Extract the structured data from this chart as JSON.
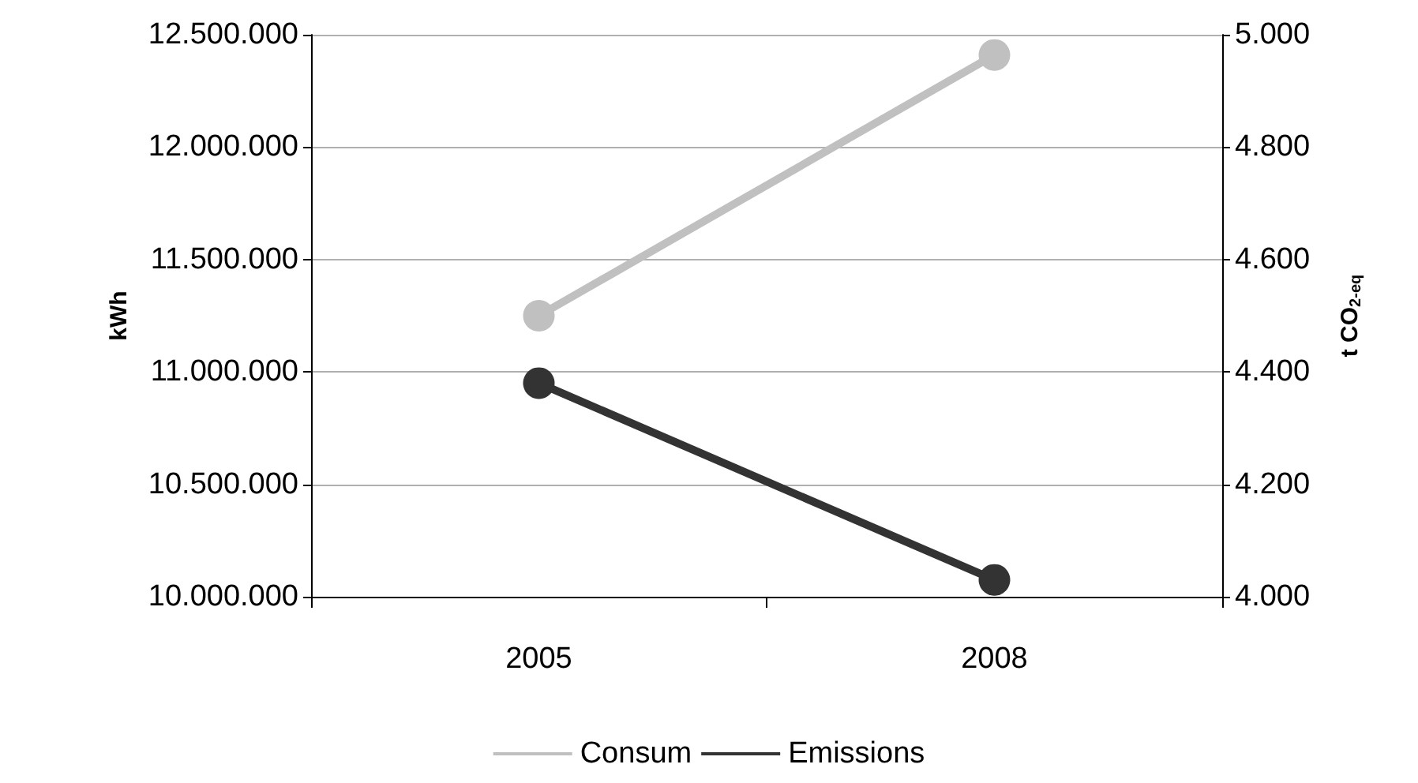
{
  "chart_data": {
    "type": "line",
    "categories": [
      "2005",
      "2008"
    ],
    "series": [
      {
        "name": "Consum",
        "color": "#c0c0c0",
        "values": [
          11250000,
          12410000
        ]
      },
      {
        "name": "Emissions",
        "color": "#333333",
        "values": [
          4380,
          4030
        ],
        "axis": "y2"
      }
    ],
    "ylabel": "kWh",
    "y2label": "t CO$_{2-eq}$",
    "ylim": [
      10000000,
      12500000
    ],
    "yticks": [
      {
        "value": 10000000,
        "label": "10.000.000"
      },
      {
        "value": 10500000,
        "label": "10.500.000"
      },
      {
        "value": 11000000,
        "label": "11.000.000"
      },
      {
        "value": 11500000,
        "label": "11.500.000"
      },
      {
        "value": 12000000,
        "label": "12.000.000"
      },
      {
        "value": 12500000,
        "label": "12.500.000"
      }
    ],
    "y2lim": [
      4000,
      5000
    ],
    "y2ticks": [
      {
        "value": 4000,
        "label": "4.000"
      },
      {
        "value": 4200,
        "label": "4.200"
      },
      {
        "value": 4400,
        "label": "4.400"
      },
      {
        "value": 4600,
        "label": "4.600"
      },
      {
        "value": 4800,
        "label": "4.800"
      },
      {
        "value": 5000,
        "label": "5.000"
      }
    ],
    "grid": "y",
    "legend": "bottom",
    "marker": "circle",
    "line_style": "solid"
  }
}
